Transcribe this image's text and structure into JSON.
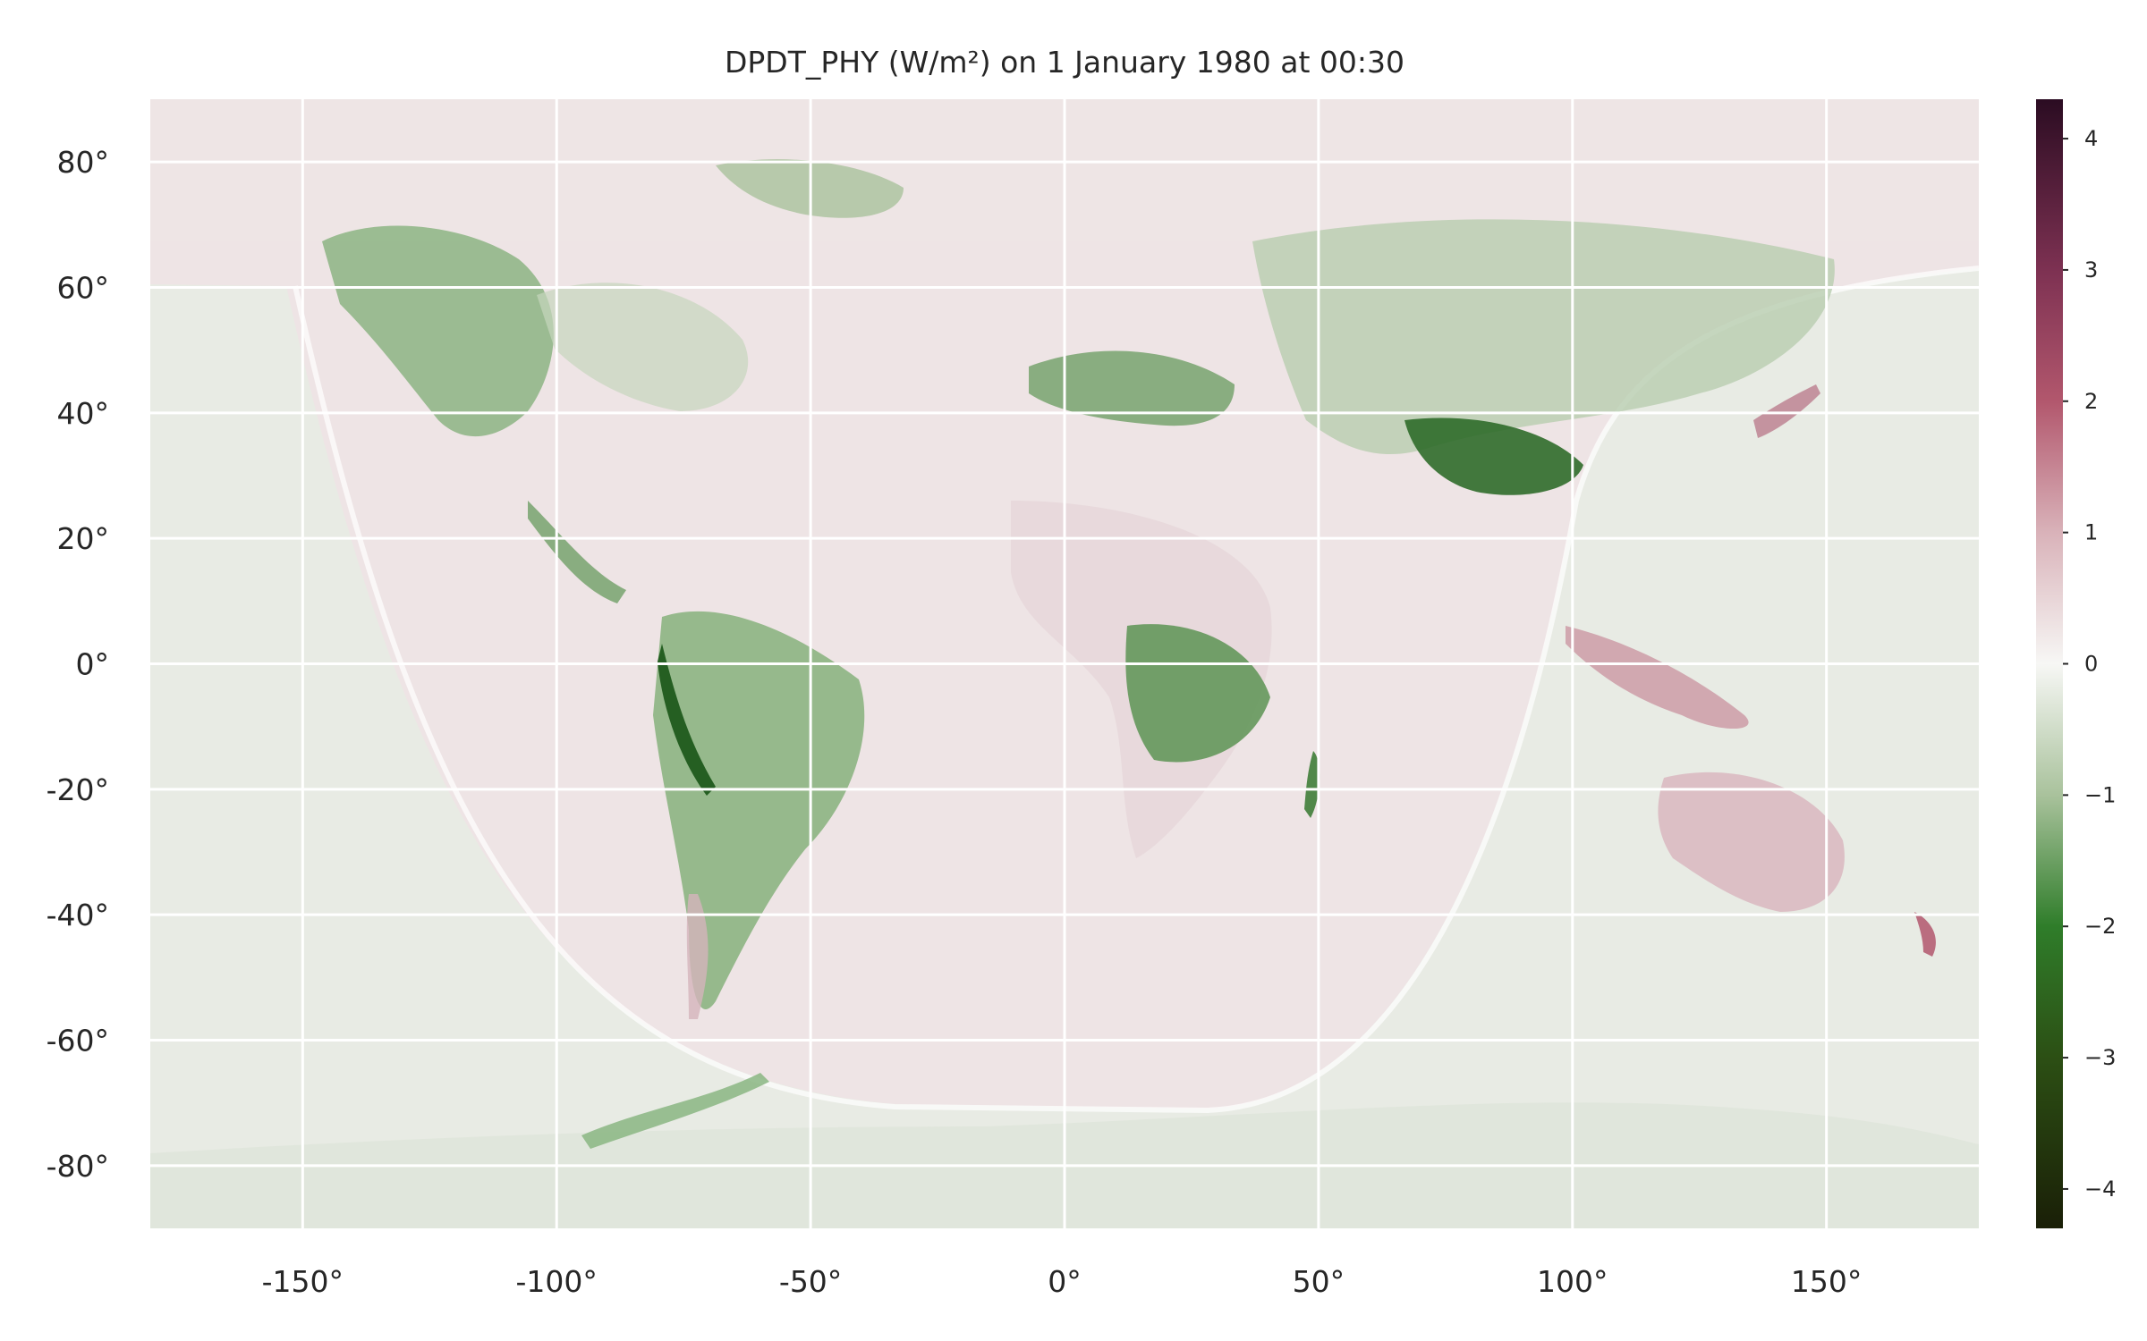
{
  "chart_data": {
    "type": "heatmap",
    "title": "DPDT_PHY (W/m²) on 1 January 1980 at 00:30",
    "xlabel": "",
    "ylabel": "",
    "xlim": [
      -180,
      180
    ],
    "ylim": [
      -90,
      90
    ],
    "x_ticks": [
      -150,
      -100,
      -50,
      0,
      50,
      100,
      150
    ],
    "x_tick_labels": [
      "-150°",
      "-100°",
      "-50°",
      "0°",
      "50°",
      "100°",
      "150°"
    ],
    "y_ticks": [
      80,
      60,
      40,
      20,
      0,
      -20,
      -40,
      -60,
      -80
    ],
    "y_tick_labels": [
      "80°",
      "60°",
      "40°",
      "20°",
      "0°",
      "-20°",
      "-40°",
      "-60°",
      "-80°"
    ],
    "grid": true,
    "colormap": "green-white-magenta diverging (PiYG-like, dark ends)",
    "colorbar": {
      "vmin": -4.3,
      "vmax": 4.3,
      "ticks": [
        4,
        3,
        2,
        1,
        0,
        -1,
        -2,
        -3,
        -4
      ],
      "tick_labels": [
        "4",
        "3",
        "2",
        "1",
        "0",
        "−1",
        "−2",
        "−3",
        "−4"
      ],
      "stops": [
        {
          "value": -4.3,
          "color": "#1a1f07"
        },
        {
          "value": -3.0,
          "color": "#2c4f14"
        },
        {
          "value": -2.0,
          "color": "#2f7d2a"
        },
        {
          "value": -1.0,
          "color": "#a9c29c"
        },
        {
          "value": 0.0,
          "color": "#f7f7f5"
        },
        {
          "value": 1.0,
          "color": "#d9b2b9"
        },
        {
          "value": 2.0,
          "color": "#b2576d"
        },
        {
          "value": 3.0,
          "color": "#7d3152"
        },
        {
          "value": 4.3,
          "color": "#2b0c22"
        }
      ]
    },
    "background_color": "#ede5e5",
    "ocean_day_color": "#e8ebe4",
    "grid_color": "#ffffff"
  }
}
